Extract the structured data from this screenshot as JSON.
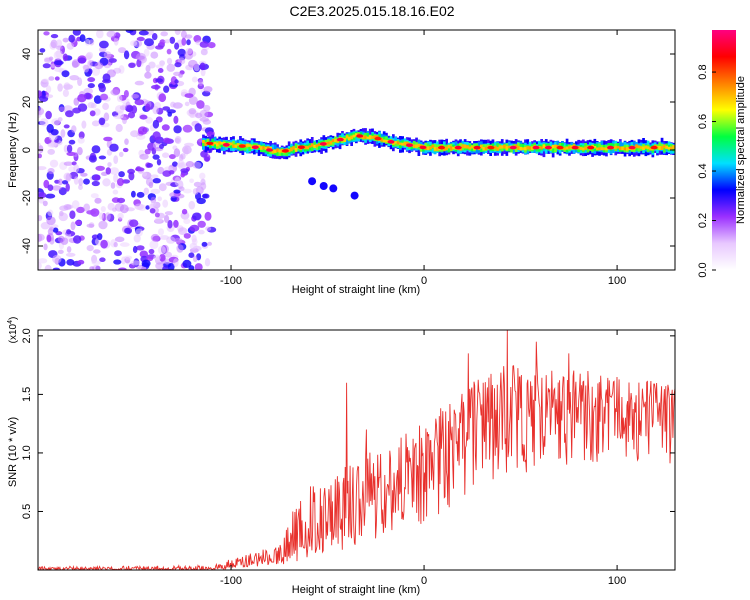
{
  "title": "C2E3.2025.015.18.16.E02",
  "chart_data": [
    {
      "type": "heatmap",
      "xlabel": "Height of straight line (km)",
      "ylabel": "Frequency (Hz)",
      "xlim": [
        -200,
        130
      ],
      "ylim": [
        -50,
        50
      ],
      "xticks": [
        -100,
        0,
        100
      ],
      "yticks": [
        40,
        20,
        0,
        -20,
        -40
      ],
      "colorbar": {
        "label": "Normalized spectral amplitude",
        "range": [
          0.0,
          0.97
        ],
        "ticks": [
          0.0,
          0.2,
          0.4,
          0.6,
          0.8
        ],
        "colormap": [
          "#ffffff",
          "#e8c8ff",
          "#9b30ff",
          "#0000ff",
          "#00e0ff",
          "#00ff40",
          "#ffff00",
          "#ff8000",
          "#ff0000",
          "#ff0080"
        ]
      },
      "noise_region": {
        "x_from": -200,
        "x_to": -110,
        "amplitude": 0.2
      },
      "signal_ridge": [
        {
          "x": -115,
          "f": 3
        },
        {
          "x": -100,
          "f": 2
        },
        {
          "x": -85,
          "f": 1
        },
        {
          "x": -75,
          "f": -1
        },
        {
          "x": -65,
          "f": 1
        },
        {
          "x": -55,
          "f": 2
        },
        {
          "x": -45,
          "f": 4
        },
        {
          "x": -35,
          "f": 6
        },
        {
          "x": -25,
          "f": 5
        },
        {
          "x": -15,
          "f": 3
        },
        {
          "x": 0,
          "f": 1
        },
        {
          "x": 20,
          "f": 1
        },
        {
          "x": 50,
          "f": 1
        },
        {
          "x": 80,
          "f": 1
        },
        {
          "x": 110,
          "f": 1
        },
        {
          "x": 130,
          "f": 1
        }
      ],
      "side_blobs": [
        {
          "x": -58,
          "f": -13
        },
        {
          "x": -52,
          "f": -15
        },
        {
          "x": -47,
          "f": -16
        },
        {
          "x": -36,
          "f": -19
        }
      ]
    },
    {
      "type": "line",
      "xlabel": "Height of straight line (km)",
      "ylabel": "SNR (10 * v/v)",
      "y_multiplier_label": "(x10",
      "y_multiplier_exponent": "4",
      "y_multiplier_close": ")",
      "xlim": [
        -200,
        130
      ],
      "ylim": [
        0,
        2.05
      ],
      "xticks": [
        -100,
        0,
        100
      ],
      "yticks": [
        0.5,
        1.0,
        1.5,
        2.0
      ],
      "ytick_labels": [
        "0.5",
        "1.0",
        "1.5",
        "2.0"
      ],
      "series": [
        {
          "name": "SNR",
          "color": "#e8302c",
          "envelope": [
            {
              "x": -200,
              "low": 0.0,
              "mid": 0.01,
              "high": 0.03
            },
            {
              "x": -110,
              "low": 0.0,
              "mid": 0.01,
              "high": 0.04
            },
            {
              "x": -95,
              "low": 0.02,
              "mid": 0.05,
              "high": 0.12
            },
            {
              "x": -75,
              "low": 0.04,
              "mid": 0.12,
              "high": 0.22
            },
            {
              "x": -60,
              "low": 0.08,
              "mid": 0.3,
              "high": 0.75
            },
            {
              "x": -40,
              "low": 0.15,
              "mid": 0.45,
              "high": 0.9
            },
            {
              "x": -20,
              "low": 0.3,
              "mid": 0.7,
              "high": 1.1
            },
            {
              "x": 0,
              "low": 0.4,
              "mid": 0.95,
              "high": 1.3
            },
            {
              "x": 20,
              "low": 0.6,
              "mid": 1.2,
              "high": 1.55
            },
            {
              "x": 40,
              "low": 0.7,
              "mid": 1.35,
              "high": 1.75
            },
            {
              "x": 60,
              "low": 0.85,
              "mid": 1.4,
              "high": 1.75
            },
            {
              "x": 80,
              "low": 0.9,
              "mid": 1.4,
              "high": 1.7
            },
            {
              "x": 100,
              "low": 0.95,
              "mid": 1.38,
              "high": 1.65
            },
            {
              "x": 130,
              "low": 0.9,
              "mid": 1.35,
              "high": 1.6
            }
          ],
          "spikes": [
            {
              "x": -68,
              "value": 0.5
            },
            {
              "x": -40,
              "value": 1.6
            },
            {
              "x": -30,
              "value": 1.2
            },
            {
              "x": 23,
              "value": 1.85
            },
            {
              "x": 43,
              "value": 2.05
            },
            {
              "x": 58,
              "value": 1.95
            },
            {
              "x": 75,
              "value": 1.85
            },
            {
              "x": 85,
              "value": 1.7
            }
          ]
        }
      ]
    }
  ]
}
